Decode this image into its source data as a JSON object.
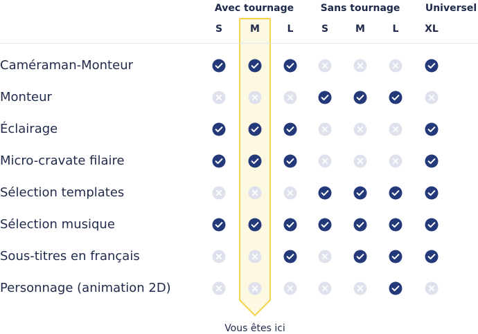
{
  "groups": [
    {
      "label": "Avec tournage"
    },
    {
      "label": "Sans tournage"
    },
    {
      "label": "Universel"
    }
  ],
  "sizes": [
    "S",
    "M",
    "L",
    "S",
    "M",
    "L",
    "XL"
  ],
  "highlight_column": "M",
  "footer_note": "Vous êtes ici",
  "icons": {
    "included": "check-circle-icon",
    "excluded": "x-circle-icon"
  },
  "colors": {
    "text": "#1f2a4a",
    "check_fill": "#24397a",
    "cross_fill": "#dfe2ec",
    "highlight_fill": "#fdf8e1",
    "highlight_border": "#f5d24a",
    "divider": "#e3e6ee"
  },
  "features": [
    {
      "label": "Caméraman-Monteur",
      "values": [
        true,
        true,
        true,
        false,
        false,
        false,
        true
      ]
    },
    {
      "label": "Monteur",
      "values": [
        false,
        false,
        false,
        true,
        true,
        true,
        false
      ]
    },
    {
      "label": "Éclairage",
      "values": [
        true,
        true,
        true,
        false,
        false,
        false,
        true
      ]
    },
    {
      "label": "Micro-cravate filaire",
      "values": [
        true,
        true,
        true,
        false,
        false,
        false,
        true
      ]
    },
    {
      "label": "Sélection templates",
      "values": [
        false,
        false,
        false,
        true,
        true,
        true,
        true
      ]
    },
    {
      "label": "Sélection musique",
      "values": [
        true,
        true,
        true,
        true,
        true,
        true,
        true
      ]
    },
    {
      "label": "Sous-titres en français",
      "values": [
        false,
        false,
        true,
        false,
        true,
        true,
        true
      ]
    },
    {
      "label": "Personnage (animation 2D)",
      "values": [
        false,
        false,
        false,
        false,
        false,
        true,
        false
      ]
    }
  ]
}
